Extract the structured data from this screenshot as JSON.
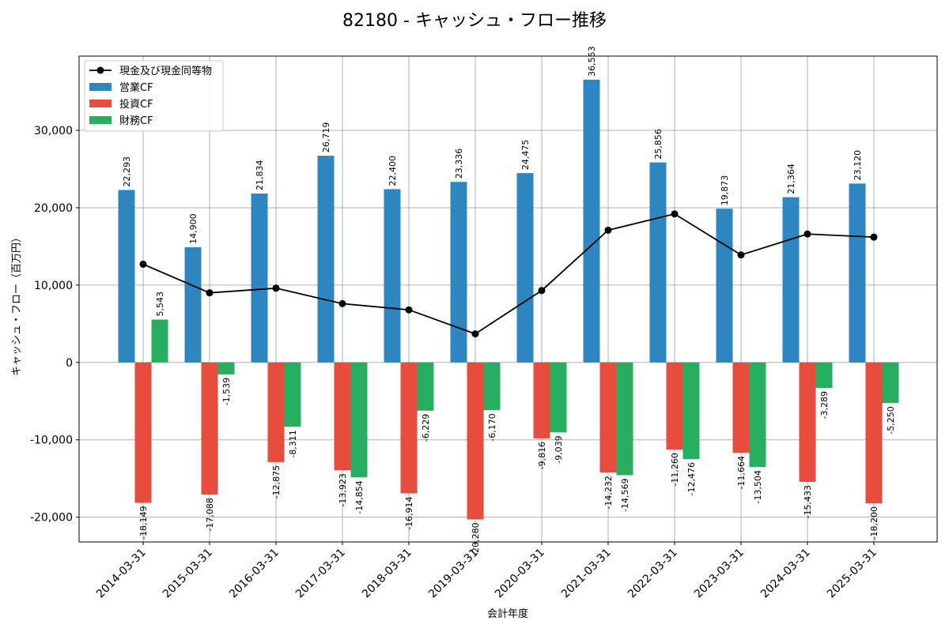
{
  "chart_data": {
    "type": "bar",
    "title": "82180 - キャッシュ・フロー推移",
    "xlabel": "会計年度",
    "ylabel": "キャッシュ・フロー（百万円）",
    "categories": [
      "2014-03-31",
      "2015-03-31",
      "2016-03-31",
      "2017-03-31",
      "2018-03-31",
      "2019-03-31",
      "2020-03-31",
      "2021-03-31",
      "2022-03-31",
      "2023-03-31",
      "2024-03-31",
      "2025-03-31"
    ],
    "ylim": [
      -23200,
      39600
    ],
    "yticks": [
      -20000,
      -10000,
      0,
      10000,
      20000,
      30000
    ],
    "ytick_labels": [
      "-20,000",
      "-10,000",
      "0",
      "10,000",
      "20,000",
      "30,000"
    ],
    "grid": true,
    "legend_position": "top-left",
    "series": [
      {
        "name": "営業CF",
        "type": "bar",
        "color": "#2e86c1",
        "values": [
          22293,
          14900,
          21834,
          26719,
          22400,
          23336,
          24475,
          36553,
          25856,
          19873,
          21364,
          23120
        ],
        "labels": [
          "22,293",
          "14,900",
          "21,834",
          "26,719",
          "22,400",
          "23,336",
          "24,475",
          "36,553",
          "25,856",
          "19,873",
          "21,364",
          "23,120"
        ]
      },
      {
        "name": "投資CF",
        "type": "bar",
        "color": "#e74c3c",
        "values": [
          -18149,
          -17088,
          -12875,
          -13923,
          -16914,
          -20280,
          -9816,
          -14232,
          -11260,
          -11664,
          -15433,
          -18200
        ],
        "labels": [
          "-18,149",
          "-17,088",
          "-12,875",
          "-13,923",
          "-16,914",
          "-20,280",
          "-9,816",
          "-14,232",
          "-11,260",
          "-11,664",
          "-15,433",
          "-18,200"
        ]
      },
      {
        "name": "財務CF",
        "type": "bar",
        "color": "#27ae60",
        "values": [
          5543,
          -1539,
          -8311,
          -14854,
          -6229,
          -6170,
          -9039,
          -14569,
          -12476,
          -13504,
          -3289,
          -5250
        ],
        "labels": [
          "5,543",
          "-1,539",
          "-8,311",
          "-14,854",
          "-6,229",
          "-6,170",
          "-9,039",
          "-14,569",
          "-12,476",
          "-13,504",
          "-3,289",
          "-5,250"
        ]
      },
      {
        "name": "現金及び現金同等物",
        "type": "line",
        "color": "#000000",
        "values": [
          12700,
          9000,
          9600,
          7600,
          6800,
          3700,
          9300,
          17100,
          19200,
          13900,
          16600,
          16200
        ]
      }
    ]
  }
}
